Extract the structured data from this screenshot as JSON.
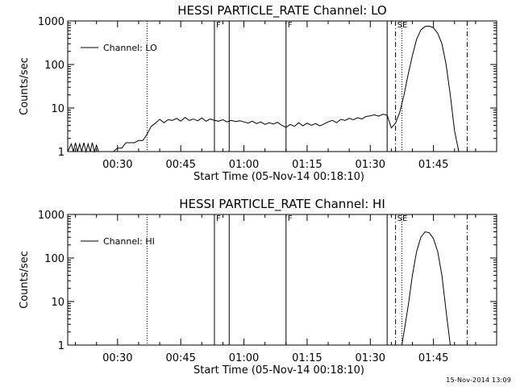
{
  "footer_stamp": "15-Nov-2014 13:09",
  "chart_data": [
    {
      "type": "line",
      "title": "HESSI PARTICLE_RATE Channel: LO",
      "xlabel": "Start Time (05-Nov-14 00:18:10)",
      "ylabel": "Counts/sec",
      "yscale": "log",
      "ylim": [
        1,
        1000
      ],
      "xlim": [
        "00:18:10",
        "02:00:00"
      ],
      "x_ticks": [
        "00:30",
        "00:45",
        "01:00",
        "01:15",
        "01:30",
        "01:45"
      ],
      "y_ticks": [
        "1",
        "10",
        "100",
        "1000"
      ],
      "legend": {
        "location": "upper-left",
        "entries": [
          "Channel: LO"
        ]
      },
      "flag_lines": [
        {
          "time": "00:53",
          "label": "F",
          "style": "solid"
        },
        {
          "time": "00:56.5",
          "label": "",
          "style": "solid"
        },
        {
          "time": "01:10",
          "label": "F",
          "style": "solid"
        },
        {
          "time": "01:34",
          "label": "",
          "style": "solid"
        },
        {
          "time": "01:36",
          "label": "SE",
          "style": "dashdot"
        },
        {
          "time": "01:53",
          "label": "",
          "style": "dashdot"
        },
        {
          "time": "00:37",
          "label": "",
          "style": "dotted"
        },
        {
          "time": "01:37.5",
          "label": "",
          "style": "dotted"
        }
      ],
      "series": [
        {
          "name": "Channel: LO",
          "x": [
            "00:18:10",
            "00:19",
            "00:19.5",
            "00:20",
            "00:20.5",
            "00:21",
            "00:21.5",
            "00:22",
            "00:22.5",
            "00:23",
            "00:23.5",
            "00:24",
            "00:24.5",
            "00:25",
            "00:25.5",
            "00:26",
            "00:27",
            "00:28",
            "00:29",
            "00:30",
            "00:31",
            "00:32",
            "00:33",
            "00:34",
            "00:35",
            "00:36",
            "00:37",
            "00:38",
            "00:39",
            "00:40",
            "00:41",
            "00:42",
            "00:43",
            "00:44",
            "00:45",
            "00:46",
            "00:47",
            "00:48",
            "00:49",
            "00:50",
            "00:51",
            "00:52",
            "00:53",
            "00:54",
            "00:55",
            "00:56",
            "00:57",
            "00:58",
            "00:59",
            "01:00",
            "01:01",
            "01:02",
            "01:03",
            "01:04",
            "01:05",
            "01:06",
            "01:07",
            "01:08",
            "01:09",
            "01:10",
            "01:11",
            "01:12",
            "01:13",
            "01:14",
            "01:15",
            "01:16",
            "01:17",
            "01:18",
            "01:19",
            "01:20",
            "01:21",
            "01:22",
            "01:23",
            "01:24",
            "01:25",
            "01:26",
            "01:27",
            "01:28",
            "01:29",
            "01:30",
            "01:31",
            "01:32",
            "01:33",
            "01:34",
            "01:35",
            "01:36",
            "01:37",
            "01:38",
            "01:39",
            "01:40",
            "01:41",
            "01:42",
            "01:43",
            "01:44",
            "01:45",
            "01:46",
            "01:47",
            "01:48",
            "01:49",
            "01:50",
            "01:51"
          ],
          "y": [
            1,
            1.5,
            1,
            1.6,
            1,
            1.5,
            1,
            1.6,
            1,
            1.5,
            1,
            1.6,
            1,
            1.4,
            1,
            1,
            1,
            1,
            1,
            1.2,
            1.2,
            1.6,
            1.6,
            1.6,
            1.8,
            1.8,
            2.5,
            3.8,
            4.5,
            5.5,
            4.6,
            5.4,
            5.2,
            5.8,
            5.0,
            6.1,
            5.2,
            5.6,
            5.1,
            5.9,
            5.0,
            5.6,
            5.2,
            5.0,
            5.4,
            4.8,
            5.2,
            4.9,
            5.1,
            4.8,
            4.5,
            5.0,
            4.4,
            4.8,
            4.2,
            4.6,
            4.3,
            4.7,
            4.0,
            3.6,
            4.2,
            3.8,
            4.6,
            3.9,
            4.5,
            4.0,
            4.4,
            3.9,
            4.3,
            4.8,
            5.2,
            4.6,
            5.5,
            5.2,
            5.8,
            5.4,
            6.0,
            5.6,
            6.4,
            6.6,
            7.0,
            6.5,
            7.2,
            6.8,
            3.5,
            4.5,
            8,
            20,
            60,
            160,
            380,
            620,
            750,
            760,
            700,
            520,
            300,
            100,
            20,
            3,
            1
          ]
        }
      ]
    },
    {
      "type": "line",
      "title": "HESSI PARTICLE_RATE Channel: HI",
      "xlabel": "Start Time (05-Nov-14 00:18:10)",
      "ylabel": "Counts/sec",
      "yscale": "log",
      "ylim": [
        1,
        1000
      ],
      "xlim": [
        "00:18:10",
        "02:00:00"
      ],
      "x_ticks": [
        "00:30",
        "00:45",
        "01:00",
        "01:15",
        "01:30",
        "01:45"
      ],
      "y_ticks": [
        "1",
        "10",
        "100",
        "1000"
      ],
      "legend": {
        "location": "upper-left",
        "entries": [
          "Channel: HI"
        ]
      },
      "flag_lines": [
        {
          "time": "00:53",
          "label": "F",
          "style": "solid"
        },
        {
          "time": "00:56.5",
          "label": "",
          "style": "solid"
        },
        {
          "time": "01:10",
          "label": "F",
          "style": "solid"
        },
        {
          "time": "01:34",
          "label": "",
          "style": "solid"
        },
        {
          "time": "01:36",
          "label": "SE",
          "style": "dashdot"
        },
        {
          "time": "01:53",
          "label": "",
          "style": "dashdot"
        },
        {
          "time": "00:37",
          "label": "",
          "style": "dotted"
        },
        {
          "time": "01:37.5",
          "label": "",
          "style": "dotted"
        }
      ],
      "series": [
        {
          "name": "Channel: HI",
          "x": [
            "01:37.5",
            "01:38",
            "01:39",
            "01:40",
            "01:41",
            "01:42",
            "01:43",
            "01:44",
            "01:45",
            "01:46",
            "01:47",
            "01:48",
            "01:49"
          ],
          "y": [
            1,
            2,
            8,
            40,
            140,
            300,
            400,
            380,
            280,
            140,
            40,
            6,
            1
          ]
        }
      ]
    }
  ]
}
